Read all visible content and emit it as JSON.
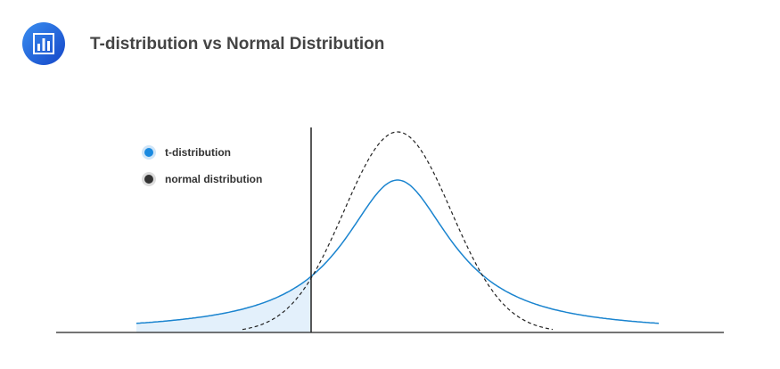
{
  "header": {
    "title": "T-distribution vs Normal Distribution"
  },
  "legend": {
    "items": [
      {
        "label": "t-distribution"
      },
      {
        "label": "normal distribution"
      }
    ]
  }
}
